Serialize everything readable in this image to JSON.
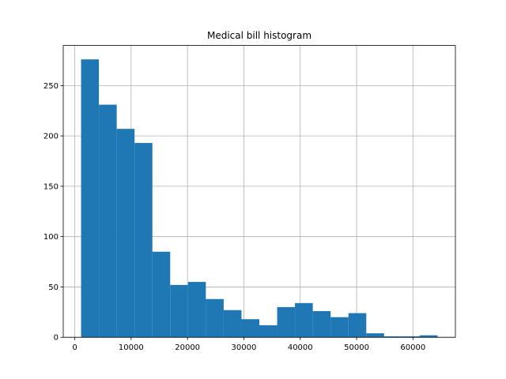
{
  "chart_data": {
    "type": "bar",
    "title": "Medical bill histogram",
    "xlabel": "",
    "ylabel": "",
    "bin_edges": [
      1122,
      4284,
      7446,
      10608,
      13771,
      16933,
      20095,
      23257,
      26419,
      29581,
      32744,
      35906,
      39068,
      42230,
      45392,
      48554,
      51717,
      54879,
      58041,
      61203,
      64365
    ],
    "values": [
      276,
      231,
      207,
      193,
      85,
      52,
      55,
      38,
      27,
      18,
      12,
      30,
      34,
      26,
      20,
      24,
      4,
      1,
      1,
      2
    ],
    "xlim": [
      -2040,
      67527
    ],
    "ylim": [
      0,
      289.8
    ],
    "xticks": [
      0,
      10000,
      20000,
      30000,
      40000,
      50000,
      60000
    ],
    "yticks": [
      0,
      50,
      100,
      150,
      200,
      250
    ],
    "grid": true,
    "bar_color": "#1f77b4"
  }
}
